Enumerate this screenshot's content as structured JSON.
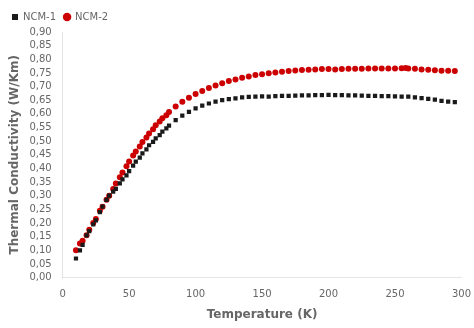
{
  "chart_data": {
    "type": "scatter",
    "xlabel": "Temperature (K)",
    "ylabel": "Thermal Conductivity (W/Km)",
    "xlim": [
      0,
      300
    ],
    "ylim": [
      0.0,
      0.9
    ],
    "xticks": [
      0,
      50,
      100,
      150,
      200,
      250,
      300
    ],
    "yticks": [
      {
        "value": 0.0,
        "label": "0,00"
      },
      {
        "value": 0.05,
        "label": "0,05"
      },
      {
        "value": 0.1,
        "label": "0,10"
      },
      {
        "value": 0.15,
        "label": "0,15"
      },
      {
        "value": 0.2,
        "label": "0,20"
      },
      {
        "value": 0.25,
        "label": "0,25"
      },
      {
        "value": 0.3,
        "label": "0,30"
      },
      {
        "value": 0.35,
        "label": "0,35"
      },
      {
        "value": 0.4,
        "label": "0,40"
      },
      {
        "value": 0.45,
        "label": "0,45"
      },
      {
        "value": 0.5,
        "label": "0,50"
      },
      {
        "value": 0.55,
        "label": "0,55"
      },
      {
        "value": 0.6,
        "label": "0,60"
      },
      {
        "value": 0.65,
        "label": "0,65"
      },
      {
        "value": 0.7,
        "label": "0,70"
      },
      {
        "value": 0.75,
        "label": "0,75"
      },
      {
        "value": 0.8,
        "label": "0,80"
      },
      {
        "value": 0.85,
        "label": "0,85"
      },
      {
        "value": 0.9,
        "label": "0,90"
      }
    ],
    "grid": false,
    "legend": "upper left",
    "series": [
      {
        "name": "NCM-1",
        "color": "#1a1a1a",
        "marker": "square",
        "x": [
          10,
          13,
          15,
          18,
          20,
          23,
          25,
          28,
          30,
          33,
          35,
          38,
          40,
          43,
          45,
          48,
          50,
          53,
          55,
          58,
          60,
          63,
          65,
          68,
          70,
          73,
          75,
          78,
          80,
          85,
          90,
          95,
          100,
          105,
          110,
          115,
          120,
          125,
          130,
          135,
          140,
          145,
          150,
          155,
          160,
          165,
          170,
          175,
          180,
          185,
          190,
          195,
          200,
          205,
          210,
          215,
          220,
          225,
          230,
          235,
          240,
          245,
          250,
          255,
          260,
          265,
          270,
          275,
          280,
          285,
          290,
          295
        ],
        "values": [
          0.07,
          0.1,
          0.12,
          0.155,
          0.17,
          0.195,
          0.21,
          0.24,
          0.26,
          0.285,
          0.3,
          0.315,
          0.325,
          0.345,
          0.36,
          0.375,
          0.39,
          0.41,
          0.425,
          0.44,
          0.455,
          0.47,
          0.485,
          0.497,
          0.51,
          0.522,
          0.535,
          0.547,
          0.557,
          0.577,
          0.594,
          0.607,
          0.62,
          0.63,
          0.638,
          0.645,
          0.65,
          0.654,
          0.657,
          0.66,
          0.662,
          0.663,
          0.664,
          0.663,
          0.665,
          0.666,
          0.666,
          0.667,
          0.668,
          0.668,
          0.669,
          0.669,
          0.67,
          0.669,
          0.669,
          0.668,
          0.668,
          0.667,
          0.666,
          0.666,
          0.665,
          0.665,
          0.664,
          0.663,
          0.663,
          0.66,
          0.658,
          0.655,
          0.652,
          0.648,
          0.645,
          0.643
        ]
      },
      {
        "name": "NCM-2",
        "color": "#cc0000",
        "marker": "circle",
        "x": [
          10,
          13,
          15,
          18,
          20,
          23,
          25,
          28,
          30,
          33,
          35,
          38,
          40,
          43,
          45,
          48,
          50,
          53,
          55,
          58,
          60,
          63,
          65,
          68,
          70,
          73,
          75,
          78,
          80,
          85,
          90,
          95,
          100,
          105,
          110,
          115,
          120,
          125,
          130,
          135,
          140,
          145,
          150,
          155,
          160,
          165,
          170,
          175,
          180,
          185,
          190,
          195,
          200,
          205,
          210,
          215,
          220,
          225,
          230,
          235,
          240,
          245,
          250,
          255,
          258,
          260,
          265,
          270,
          275,
          280,
          285,
          290,
          295
        ],
        "values": [
          0.1,
          0.125,
          0.135,
          0.155,
          0.175,
          0.2,
          0.215,
          0.245,
          0.26,
          0.285,
          0.3,
          0.325,
          0.345,
          0.368,
          0.385,
          0.408,
          0.425,
          0.447,
          0.462,
          0.48,
          0.497,
          0.513,
          0.528,
          0.544,
          0.558,
          0.572,
          0.584,
          0.595,
          0.607,
          0.627,
          0.644,
          0.659,
          0.673,
          0.684,
          0.695,
          0.704,
          0.712,
          0.72,
          0.726,
          0.732,
          0.737,
          0.742,
          0.745,
          0.749,
          0.752,
          0.754,
          0.757,
          0.759,
          0.761,
          0.762,
          0.763,
          0.764,
          0.764,
          0.763,
          0.764,
          0.765,
          0.765,
          0.765,
          0.766,
          0.766,
          0.766,
          0.766,
          0.766,
          0.767,
          0.768,
          0.766,
          0.765,
          0.763,
          0.762,
          0.76,
          0.758,
          0.758,
          0.757
        ]
      }
    ]
  }
}
